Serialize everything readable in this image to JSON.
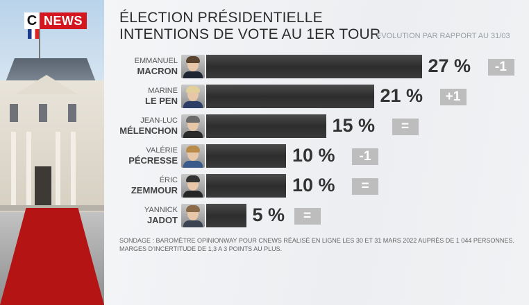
{
  "logo": {
    "c": "C",
    "news": "NEWS"
  },
  "chart_data": {
    "type": "bar",
    "title": "ÉLECTION PRÉSIDENTIELLE",
    "subtitle": "INTENTIONS DE VOTE AU 1ER TOUR",
    "evolution_label": "EVOLUTION PAR RAPPORT AU 31/03",
    "unit": "%",
    "categories": [
      "EMMANUEL MACRON",
      "MARINE LE PEN",
      "JEAN-LUC MÉLENCHON",
      "VALÉRIE PÉCRESSE",
      "ÉRIC ZEMMOUR",
      "YANNICK JADOT"
    ],
    "values": [
      27,
      21,
      15,
      10,
      10,
      5
    ],
    "candidates": [
      {
        "first": "EMMANUEL",
        "last": "MACRON",
        "value": 27,
        "label": "27 %",
        "change": "-1",
        "hair": "#5a4430",
        "suit": "#1f2633"
      },
      {
        "first": "MARINE",
        "last": "LE PEN",
        "value": 21,
        "label": "21 %",
        "change": "+1",
        "hair": "#e2cf9a",
        "suit": "#2c3d66"
      },
      {
        "first": "JEAN-LUC",
        "last": "MÉLENCHON",
        "value": 15,
        "label": "15 %",
        "change": "=",
        "hair": "#6b6b6b",
        "suit": "#2a2a2a"
      },
      {
        "first": "VALÉRIE",
        "last": "PÉCRESSE",
        "value": 10,
        "label": "10 %",
        "change": "-1",
        "hair": "#b98c4c",
        "suit": "#3a5a8c"
      },
      {
        "first": "ÉRIC",
        "last": "ZEMMOUR",
        "value": 10,
        "label": "10 %",
        "change": "=",
        "hair": "#333333",
        "suit": "#262626"
      },
      {
        "first": "YANNICK",
        "last": "JADOT",
        "value": 5,
        "label": "5 %",
        "change": "=",
        "hair": "#8a6a48",
        "suit": "#3c4350"
      }
    ]
  },
  "footnote": {
    "line1": "SONDAGE : BAROMÈTRE OPINIONWAY POUR CNEWS RÉALISÉ EN LIGNE LES 30 ET 31 MARS 2022 AUPRÈS DE 1 044 PERSONNES.",
    "line2": "MARGES D'INCERTITUDE DE 1,3 A 3 POINTS AU PLUS."
  },
  "colors": {
    "bar": "#333333",
    "badge": "#bdbdbd",
    "brand_red": "#d4171e"
  }
}
